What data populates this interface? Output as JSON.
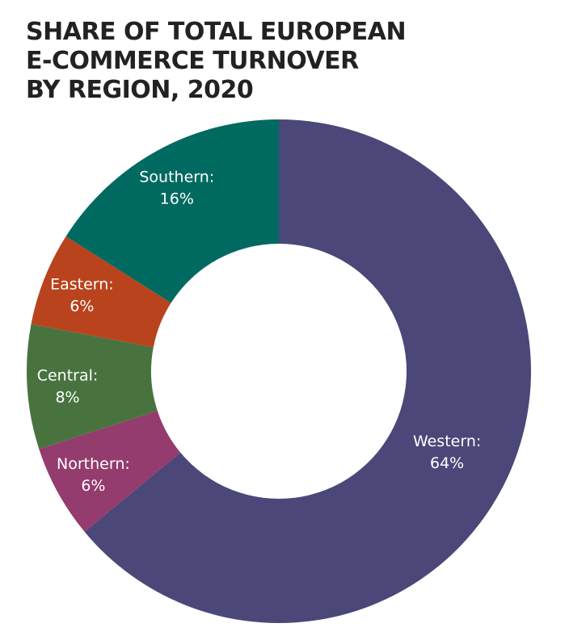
{
  "chart_data": {
    "type": "pie",
    "variant": "donut",
    "title": "SHARE OF TOTAL EUROPEAN\nE-COMMERCE TURNOVER\nBY REGION, 2020",
    "start": "top",
    "direction": "clockwise",
    "slices": [
      {
        "label": "Western:",
        "value": 64,
        "value_text": "64%",
        "color": "#4b4778"
      },
      {
        "label": "Northern:",
        "value": 6,
        "value_text": "6%",
        "color": "#943c6d"
      },
      {
        "label": "Central:",
        "value": 8,
        "value_text": "8%",
        "color": "#48733f"
      },
      {
        "label": "Eastern:",
        "value": 6,
        "value_text": "6%",
        "color": "#b8431d"
      },
      {
        "label": "Southern:",
        "value": 16,
        "value_text": "16%",
        "color": "#006a61"
      }
    ]
  }
}
